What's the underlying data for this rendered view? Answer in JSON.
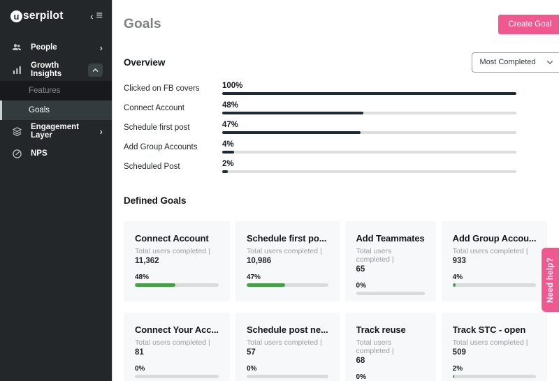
{
  "brand": {
    "first_letter": "u",
    "rest": "serpilot"
  },
  "sidebar": {
    "collapse_icon": "‹",
    "menu_icon": "≡",
    "items": [
      {
        "label": "People",
        "icon": "people-icon",
        "chevron": "›"
      },
      {
        "label": "Growth Insights",
        "icon": "bar-chart-icon",
        "chevron": "up"
      },
      {
        "label": "Engagement Layer",
        "icon": "layers-icon",
        "chevron": "›"
      },
      {
        "label": "NPS",
        "icon": "gauge-icon",
        "chevron": ""
      }
    ],
    "subitems": [
      {
        "label": "Features",
        "active": false
      },
      {
        "label": "Goals",
        "active": true
      }
    ]
  },
  "header": {
    "title": "Goals",
    "create_goal_label": "Create Goal"
  },
  "overview": {
    "heading": "Overview",
    "sort_selected": "Most Completed",
    "rows": [
      {
        "label": "Clicked on FB covers",
        "percent_label": "100%",
        "percent_value": 100
      },
      {
        "label": "Connect Account",
        "percent_label": "48%",
        "percent_value": 48
      },
      {
        "label": "Schedule first post",
        "percent_label": "47%",
        "percent_value": 47
      },
      {
        "label": "Add Group Accounts",
        "percent_label": "4%",
        "percent_value": 4
      },
      {
        "label": "Scheduled Post",
        "percent_label": "2%",
        "percent_value": 2
      }
    ]
  },
  "defined_goals": {
    "heading": "Defined Goals",
    "stat_label": "Total users completed |",
    "cards": [
      {
        "title": "Connect Account",
        "total": "11,362",
        "percent_label": "48%",
        "percent_value": 48
      },
      {
        "title": "Schedule first po...",
        "total": "10,986",
        "percent_label": "47%",
        "percent_value": 47
      },
      {
        "title": "Add Teammates",
        "total": "65",
        "percent_label": "0%",
        "percent_value": 0
      },
      {
        "title": "Add Group Accou...",
        "total": "933",
        "percent_label": "4%",
        "percent_value": 4
      },
      {
        "title": "Connect Your Acc...",
        "total": "81",
        "percent_label": "0%",
        "percent_value": 0
      },
      {
        "title": "Schedule post ne...",
        "total": "57",
        "percent_label": "0%",
        "percent_value": 0
      },
      {
        "title": "Track reuse",
        "total": "68",
        "percent_label": "0%",
        "percent_value": 0
      },
      {
        "title": "Track STC - open",
        "total": "509",
        "percent_label": "2%",
        "percent_value": 2
      }
    ]
  },
  "help_tab": {
    "label": "Need help?"
  },
  "colors": {
    "accent_pink": "#f0598f",
    "overview_bar": "#1e2a36",
    "card_bar_green": "#43a047",
    "track_gray": "#dcdee0",
    "sidebar_bg": "#232729"
  }
}
